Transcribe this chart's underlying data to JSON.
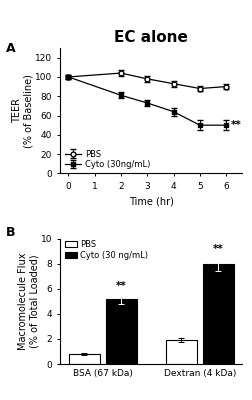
{
  "title": "EC alone",
  "panel_A": {
    "time": [
      0,
      2,
      3,
      4,
      5,
      6
    ],
    "pbs_mean": [
      100,
      104,
      98,
      93,
      88,
      90
    ],
    "pbs_err": [
      2,
      3,
      3,
      3,
      3,
      3
    ],
    "cyto_mean": [
      100,
      81,
      73,
      64,
      50,
      50
    ],
    "cyto_err": [
      2,
      3,
      3,
      4,
      5,
      5
    ],
    "xlabel": "Time (hr)",
    "ylabel": "TEER\n(% of Baseline)",
    "ylim": [
      0,
      130
    ],
    "yticks": [
      0,
      20,
      40,
      60,
      80,
      100,
      120
    ],
    "xticks": [
      0,
      1,
      2,
      3,
      4,
      5,
      6
    ],
    "legend_pbs": "PBS",
    "legend_cyto": "Cyto (30ng/mL)",
    "significance": "**"
  },
  "panel_B": {
    "groups": [
      "BSA (67 kDa)",
      "Dextran (4 kDa)"
    ],
    "pbs_mean": [
      0.8,
      1.9
    ],
    "pbs_err": [
      0.1,
      0.15
    ],
    "cyto_mean": [
      5.2,
      8.0
    ],
    "cyto_err": [
      0.4,
      0.6
    ],
    "ylabel": "Macromolecule Flux\n(% of Total Loaded)",
    "ylim": [
      0,
      10
    ],
    "yticks": [
      0,
      2,
      4,
      6,
      8,
      10
    ],
    "legend_pbs": "PBS",
    "legend_cyto": "Cyto (30 ng/mL)",
    "significance": "**"
  },
  "bg_color": "#ffffff",
  "label_fontsize": 7,
  "tick_fontsize": 6.5,
  "title_fontsize": 11,
  "panel_label_fontsize": 9,
  "bar_width": 0.32,
  "bar_gap": 0.06
}
